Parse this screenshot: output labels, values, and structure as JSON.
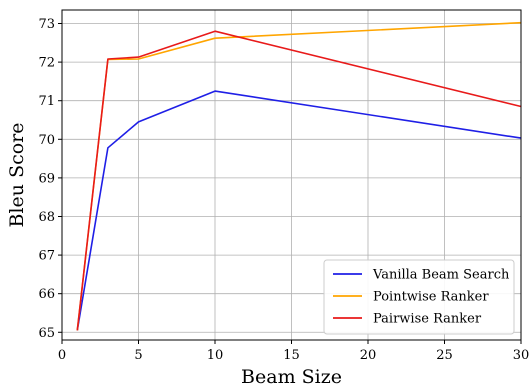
{
  "chart_data": {
    "type": "line",
    "title": "",
    "xlabel": "Beam Size",
    "ylabel": "Bleu Score",
    "xlim": [
      0,
      30
    ],
    "ylim": [
      64.8,
      73.35
    ],
    "xticks": [
      0,
      5,
      10,
      15,
      20,
      25,
      30
    ],
    "yticks": [
      65,
      66,
      67,
      68,
      69,
      70,
      71,
      72,
      73
    ],
    "grid": true,
    "legend_position": "lower-right",
    "x": [
      1,
      3,
      5,
      10,
      30
    ],
    "series": [
      {
        "name": "Vanilla Beam Search",
        "color": "#1f1fe6",
        "values": [
          65.05,
          69.78,
          70.45,
          71.25,
          70.03
        ]
      },
      {
        "name": "Pointwise Ranker",
        "color": "#ffa500",
        "values": [
          65.05,
          72.07,
          72.08,
          72.62,
          73.02
        ]
      },
      {
        "name": "Pairwise Ranker",
        "color": "#e81a1a",
        "values": [
          65.05,
          72.08,
          72.13,
          72.8,
          70.85
        ]
      }
    ]
  }
}
